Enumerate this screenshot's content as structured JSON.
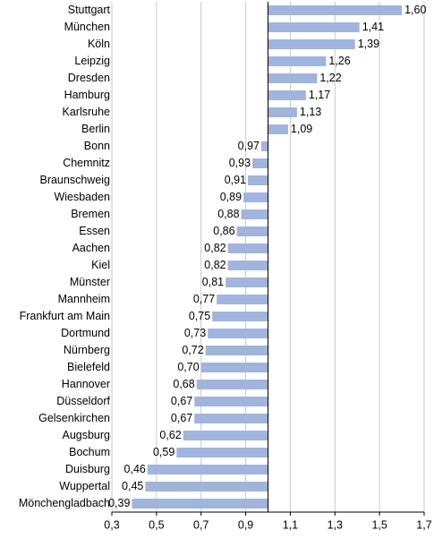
{
  "chart_data": {
    "type": "bar",
    "orientation": "horizontal",
    "baseline": 1,
    "categories": [
      "Stuttgart",
      "München",
      "Köln",
      "Leipzig",
      "Dresden",
      "Hamburg",
      "Karlsruhe",
      "Berlin",
      "Bonn",
      "Chemnitz",
      "Braunschweig",
      "Wiesbaden",
      "Bremen",
      "Essen",
      "Aachen",
      "Kiel",
      "Münster",
      "Mannheim",
      "Frankfurt am Main",
      "Dortmund",
      "Nürnberg",
      "Bielefeld",
      "Hannover",
      "Düsseldorf",
      "Gelsenkirchen",
      "Augsburg",
      "Bochum",
      "Duisburg",
      "Wuppertal",
      "Mönchengladbach"
    ],
    "values": [
      1.6,
      1.41,
      1.39,
      1.26,
      1.22,
      1.17,
      1.13,
      1.09,
      0.97,
      0.93,
      0.91,
      0.89,
      0.88,
      0.86,
      0.82,
      0.82,
      0.81,
      0.77,
      0.75,
      0.73,
      0.72,
      0.7,
      0.68,
      0.67,
      0.67,
      0.62,
      0.59,
      0.46,
      0.45,
      0.39
    ],
    "value_labels": [
      "1,60",
      "1,41",
      "1,39",
      "1,26",
      "1,22",
      "1,17",
      "1,13",
      "1,09",
      "0,97",
      "0,93",
      "0,91",
      "0,89",
      "0,88",
      "0,86",
      "0,82",
      "0,82",
      "0,81",
      "0,77",
      "0,75",
      "0,73",
      "0,72",
      "0,70",
      "0,68",
      "0,67",
      "0,67",
      "0,62",
      "0,59",
      "0,46",
      "0,45",
      "0,39"
    ],
    "color": "#a0b4dc",
    "xlim": [
      0.3,
      1.7
    ],
    "xticks": [
      {
        "value": 0.3,
        "label": "0,3"
      },
      {
        "value": 0.5,
        "label": "0,5"
      },
      {
        "value": 0.7,
        "label": "0,7"
      },
      {
        "value": 0.9,
        "label": "0,9"
      },
      {
        "value": 1.1,
        "label": "1,1"
      },
      {
        "value": 1.3,
        "label": "1,3"
      },
      {
        "value": 1.5,
        "label": "1,5"
      },
      {
        "value": 1.7,
        "label": "1,7"
      }
    ],
    "grid": true
  }
}
